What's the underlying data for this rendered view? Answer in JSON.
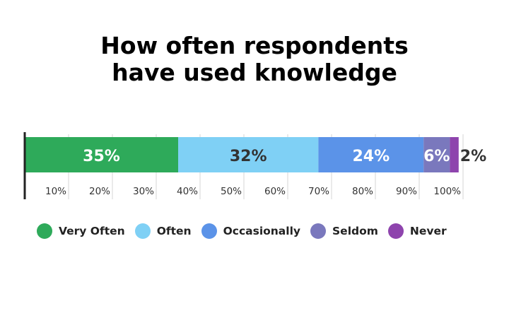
{
  "chart_data": {
    "type": "bar",
    "orientation": "horizontal-stacked-100",
    "title": [
      "How often respondents",
      "have used knowledge"
    ],
    "categories": [
      ""
    ],
    "series": [
      {
        "name": "Very Often",
        "values": [
          35
        ],
        "label": "35%",
        "color": "#2eaa5a"
      },
      {
        "name": "Often",
        "values": [
          32
        ],
        "label": "32%",
        "color": "#7fd0f5"
      },
      {
        "name": "Occasionally",
        "values": [
          24
        ],
        "label": "24%",
        "color": "#5b93e8"
      },
      {
        "name": "Seldom",
        "values": [
          6
        ],
        "label": "6%",
        "color": "#7a78bd"
      },
      {
        "name": "Never",
        "values": [
          2
        ],
        "label": "2%",
        "color": "#8e44ad"
      }
    ],
    "xlim": [
      0,
      100
    ],
    "x_ticks": [
      "10%",
      "20%",
      "30%",
      "40%",
      "50%",
      "60%",
      "70%",
      "80%",
      "90%",
      "100%"
    ],
    "grid": true,
    "legend_position": "bottom"
  }
}
